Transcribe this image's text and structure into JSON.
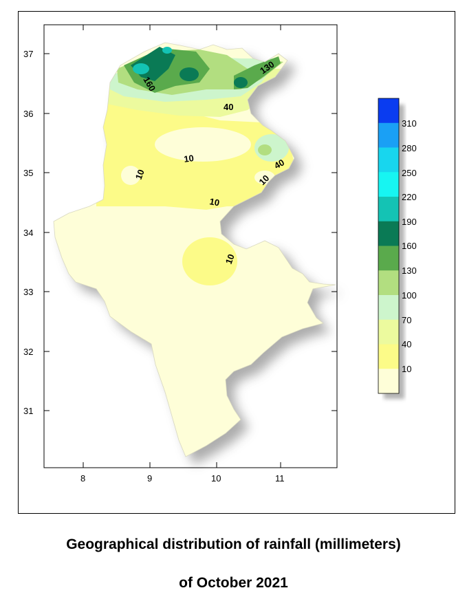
{
  "map": {
    "x_ticks": [
      "8",
      "9",
      "10",
      "11"
    ],
    "y_ticks": [
      "37",
      "36",
      "35",
      "34",
      "33",
      "32",
      "31"
    ],
    "contour_labels": [
      "160",
      "130",
      "40",
      "10",
      "10",
      "40",
      "10",
      "10",
      "10"
    ],
    "region": "Tunisia"
  },
  "legend": {
    "levels": [
      "310",
      "280",
      "250",
      "220",
      "190",
      "160",
      "130",
      "100",
      "70",
      "40",
      "10"
    ],
    "colors": [
      "#0a3cf0",
      "#1aa0f5",
      "#18d6ee",
      "#17f5f2",
      "#14c3b4",
      "#0a7a55",
      "#5aaa4c",
      "#b2de80",
      "#cdf5cc",
      "#ecfa9e",
      "#fcfb88",
      "#fefed8"
    ]
  },
  "caption": {
    "line1": "Geographical distribution of rainfall (millimeters)",
    "line2": "of October 2021"
  }
}
